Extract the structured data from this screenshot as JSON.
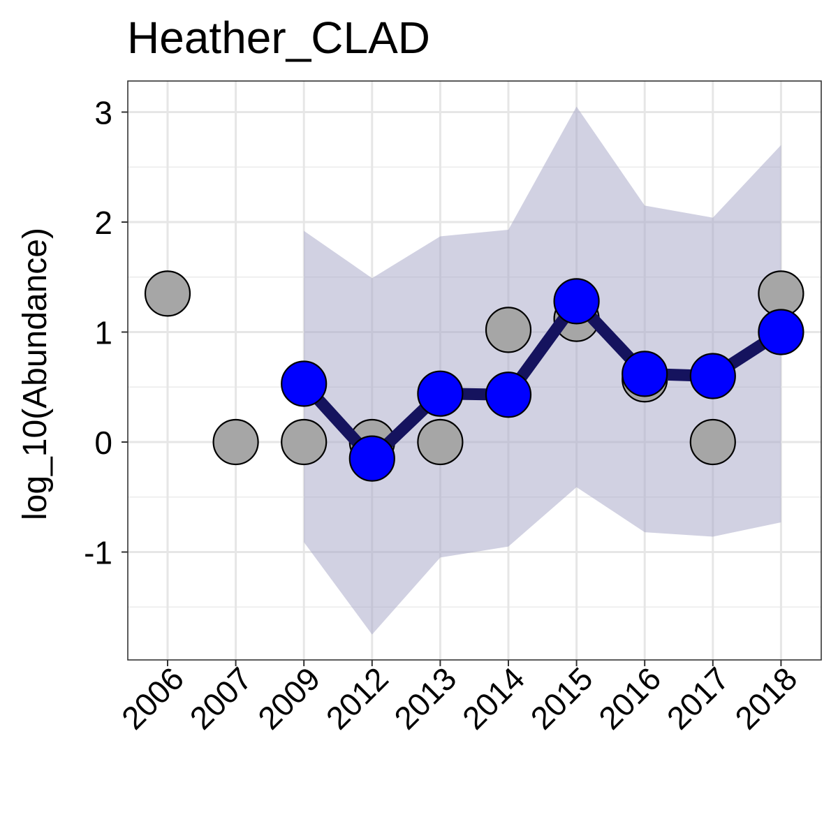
{
  "chart_data": {
    "type": "line",
    "title": "Heather_CLAD",
    "xlabel": "",
    "ylabel": "log_10(Abundance)",
    "categories": [
      "2006",
      "2007",
      "2009",
      "2012",
      "2013",
      "2014",
      "2015",
      "2016",
      "2017",
      "2018"
    ],
    "yticks": [
      "3",
      "2",
      "1",
      "0",
      "-1"
    ],
    "ylim": [
      -1.98,
      3.28
    ],
    "grid": true,
    "observed": {
      "color": "#a6a6a6",
      "points": [
        {
          "x": "2006",
          "y": 1.35
        },
        {
          "x": "2007",
          "y": 0.0
        },
        {
          "x": "2009",
          "y": 0.0
        },
        {
          "x": "2012",
          "y": 0.0
        },
        {
          "x": "2013",
          "y": 0.0
        },
        {
          "x": "2014",
          "y": 1.02
        },
        {
          "x": "2015",
          "y": 1.12
        },
        {
          "x": "2016",
          "y": 0.57
        },
        {
          "x": "2017",
          "y": 0.0
        },
        {
          "x": "2018",
          "y": 1.35
        }
      ]
    },
    "estimated": {
      "line_color": "#15135e",
      "point_color": "#0000ff",
      "points": [
        {
          "x": "2009",
          "y": 0.53
        },
        {
          "x": "2012",
          "y": -0.15
        },
        {
          "x": "2013",
          "y": 0.44
        },
        {
          "x": "2014",
          "y": 0.43
        },
        {
          "x": "2015",
          "y": 1.28
        },
        {
          "x": "2016",
          "y": 0.62
        },
        {
          "x": "2017",
          "y": 0.6
        },
        {
          "x": "2018",
          "y": 1.0
        }
      ]
    },
    "interval": {
      "color": "#a3a3c6",
      "points": [
        {
          "x": "2009",
          "lower": -0.91,
          "upper": 1.92
        },
        {
          "x": "2012",
          "lower": -1.75,
          "upper": 1.49
        },
        {
          "x": "2013",
          "lower": -1.05,
          "upper": 1.87
        },
        {
          "x": "2014",
          "lower": -0.95,
          "upper": 1.93
        },
        {
          "x": "2015",
          "lower": -0.41,
          "upper": 3.05
        },
        {
          "x": "2016",
          "lower": -0.82,
          "upper": 2.15
        },
        {
          "x": "2017",
          "lower": -0.86,
          "upper": 2.04
        },
        {
          "x": "2018",
          "lower": -0.73,
          "upper": 2.7
        }
      ]
    }
  }
}
